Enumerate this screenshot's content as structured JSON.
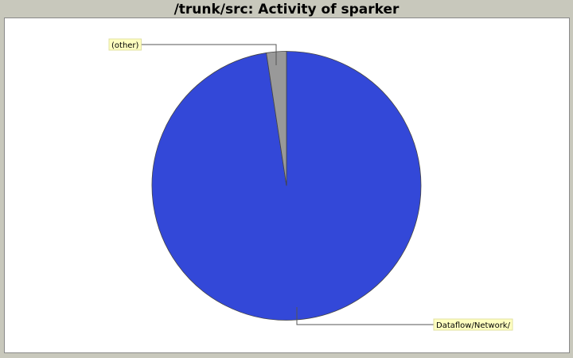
{
  "colors": {
    "background": "#c8c8bc",
    "plot_background": "#ffffff",
    "label_background": "#ffffc0"
  },
  "chart_data": {
    "type": "pie",
    "title": "/trunk/src: Activity of sparker",
    "slices": [
      {
        "label": "Dataflow/Network/",
        "value": 97.6,
        "color": "#3348d8"
      },
      {
        "label": "(other)",
        "value": 2.4,
        "color": "#999999"
      }
    ],
    "legend": "none",
    "labels_with_leader_lines": true
  }
}
